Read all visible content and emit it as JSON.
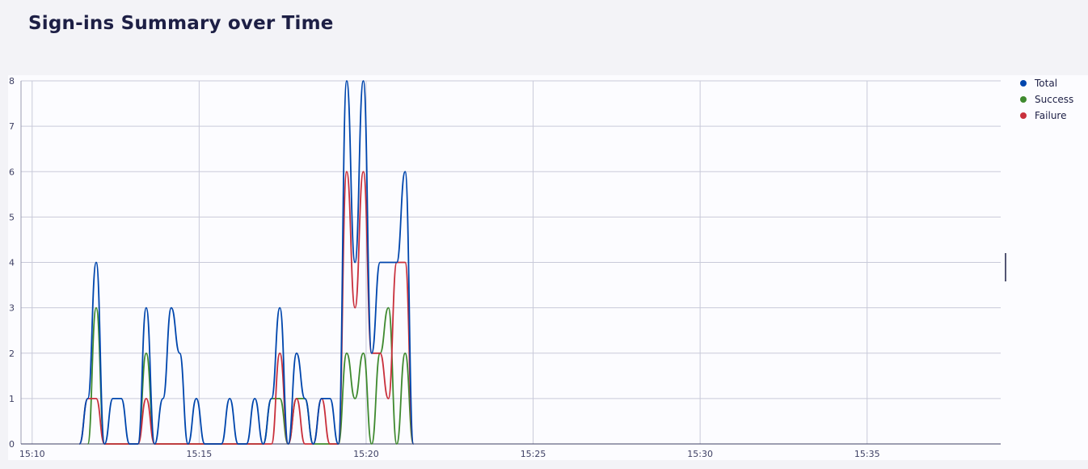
{
  "page": {
    "title": "Sign-ins Summary over Time"
  },
  "chart_data": {
    "type": "line",
    "title": "Sign-ins Summary over Time",
    "xlabel": "",
    "ylabel": "",
    "x_axis": {
      "type": "time",
      "min": "15:09:40",
      "max": "15:39:00",
      "ticks": [
        "15:10",
        "15:15",
        "15:20",
        "15:25",
        "15:30",
        "15:35"
      ]
    },
    "ylim": [
      0,
      8
    ],
    "y_ticks": [
      0,
      1,
      2,
      3,
      4,
      5,
      6,
      7,
      8
    ],
    "grid": true,
    "legend": {
      "placement": "top-right"
    },
    "series": [
      {
        "name": "Total",
        "color": "#0046ad",
        "points": [
          [
            "15:11:25",
            0
          ],
          [
            "15:11:40",
            1
          ],
          [
            "15:11:55",
            4
          ],
          [
            "15:12:10",
            0
          ],
          [
            "15:12:25",
            1
          ],
          [
            "15:12:40",
            1
          ],
          [
            "15:12:55",
            0
          ],
          [
            "15:13:10",
            0
          ],
          [
            "15:13:25",
            3
          ],
          [
            "15:13:40",
            0
          ],
          [
            "15:13:55",
            1
          ],
          [
            "15:14:10",
            3
          ],
          [
            "15:14:25",
            2
          ],
          [
            "15:14:40",
            0
          ],
          [
            "15:14:55",
            1
          ],
          [
            "15:15:10",
            0
          ],
          [
            "15:15:40",
            0
          ],
          [
            "15:15:55",
            1
          ],
          [
            "15:16:10",
            0
          ],
          [
            "15:16:25",
            0
          ],
          [
            "15:16:40",
            1
          ],
          [
            "15:16:55",
            0
          ],
          [
            "15:17:10",
            1
          ],
          [
            "15:17:25",
            3
          ],
          [
            "15:17:40",
            0
          ],
          [
            "15:17:55",
            2
          ],
          [
            "15:18:10",
            1
          ],
          [
            "15:18:25",
            0
          ],
          [
            "15:18:40",
            1
          ],
          [
            "15:18:55",
            1
          ],
          [
            "15:19:10",
            0
          ],
          [
            "15:19:25",
            8
          ],
          [
            "15:19:40",
            4
          ],
          [
            "15:19:55",
            8
          ],
          [
            "15:20:10",
            2
          ],
          [
            "15:20:25",
            4
          ],
          [
            "15:20:40",
            4
          ],
          [
            "15:20:55",
            4
          ],
          [
            "15:21:10",
            6
          ],
          [
            "15:21:25",
            0
          ]
        ]
      },
      {
        "name": "Success",
        "color": "#3f8a2f",
        "points": [
          [
            "15:11:40",
            0
          ],
          [
            "15:11:55",
            3
          ],
          [
            "15:12:10",
            0
          ],
          [
            "15:13:10",
            0
          ],
          [
            "15:13:25",
            2
          ],
          [
            "15:13:40",
            0
          ],
          [
            "15:16:55",
            0
          ],
          [
            "15:17:10",
            1
          ],
          [
            "15:17:25",
            1
          ],
          [
            "15:17:40",
            0
          ],
          [
            "15:17:55",
            1
          ],
          [
            "15:18:10",
            1
          ],
          [
            "15:18:25",
            0
          ],
          [
            "15:19:10",
            0
          ],
          [
            "15:19:25",
            2
          ],
          [
            "15:19:40",
            1
          ],
          [
            "15:19:55",
            2
          ],
          [
            "15:20:10",
            0
          ],
          [
            "15:20:25",
            2
          ],
          [
            "15:20:40",
            3
          ],
          [
            "15:20:55",
            0
          ],
          [
            "15:21:10",
            2
          ],
          [
            "15:21:25",
            0
          ]
        ]
      },
      {
        "name": "Failure",
        "color": "#c9303c",
        "points": [
          [
            "15:11:25",
            0
          ],
          [
            "15:11:40",
            1
          ],
          [
            "15:11:55",
            1
          ],
          [
            "15:12:10",
            0
          ],
          [
            "15:13:10",
            0
          ],
          [
            "15:13:25",
            1
          ],
          [
            "15:13:40",
            0
          ],
          [
            "15:17:10",
            0
          ],
          [
            "15:17:25",
            2
          ],
          [
            "15:17:40",
            0
          ],
          [
            "15:17:55",
            1
          ],
          [
            "15:18:10",
            0
          ],
          [
            "15:18:25",
            0
          ],
          [
            "15:18:40",
            1
          ],
          [
            "15:18:55",
            0
          ],
          [
            "15:19:10",
            0
          ],
          [
            "15:19:25",
            6
          ],
          [
            "15:19:40",
            3
          ],
          [
            "15:19:55",
            6
          ],
          [
            "15:20:10",
            2
          ],
          [
            "15:20:25",
            2
          ],
          [
            "15:20:40",
            1
          ],
          [
            "15:20:55",
            4
          ],
          [
            "15:21:10",
            4
          ],
          [
            "15:21:25",
            0
          ]
        ]
      }
    ]
  }
}
